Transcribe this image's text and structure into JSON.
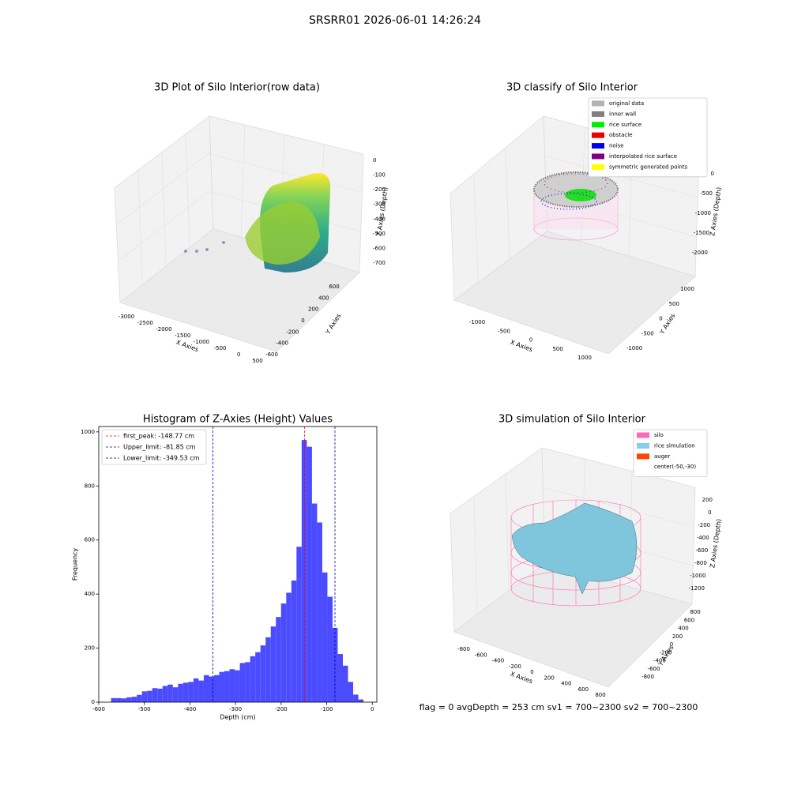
{
  "title": "SRSRR01 2026-06-01 14:26:24",
  "footer": "flag = 0     avgDepth = 253 cm  sv1 = 700~2300  sv2 = 700~2300",
  "chart_data": [
    {
      "type": "scatter3d",
      "title": "3D Plot of Silo Interior(row data)",
      "xlabel": "X Axies",
      "ylabel": "Y Axies",
      "zlabel": "Z Axies (Depth)",
      "xticks": [
        -3000,
        -2500,
        -2000,
        -1500,
        -1000,
        -500,
        0,
        500
      ],
      "yticks": [
        -600,
        -400,
        -200,
        0,
        200,
        400,
        600
      ],
      "zticks": [
        0,
        -100,
        -200,
        -300,
        -400,
        -500,
        -600,
        -700
      ]
    },
    {
      "type": "classify3d",
      "title": "3D classify of Silo Interior",
      "xlabel": "X Axies",
      "ylabel": "Y Axies",
      "zlabel": "Z Axies (Depth)",
      "xticks": [
        -1000,
        -500,
        0,
        500,
        1000
      ],
      "yticks": [
        -1000,
        -500,
        0,
        500,
        1000
      ],
      "zticks": [
        0,
        -500,
        -1000,
        -1500,
        -2000
      ],
      "legend": [
        {
          "name": "original data",
          "color": "#b3b3b3"
        },
        {
          "name": "inner wall",
          "color": "#808080"
        },
        {
          "name": "rice surface",
          "color": "#00ee00"
        },
        {
          "name": "obstacle",
          "color": "#ee0000"
        },
        {
          "name": "noise",
          "color": "#0000ee"
        },
        {
          "name": "interpolated rice surface",
          "color": "#800080"
        },
        {
          "name": "symmetric generated points",
          "color": "#ffff00"
        }
      ]
    },
    {
      "type": "histogram",
      "title": "Histogram of Z-Axies (Height) Values",
      "xlabel": "Depth (cm)",
      "ylabel": "Frequency",
      "color": "#4b4bff",
      "bins": [
        -573,
        -561.7,
        -550.4,
        -539.1,
        -527.8,
        -516.5,
        -505.2,
        -493.9,
        -482.6,
        -471.3,
        -460,
        -448.7,
        -437.4,
        -426.1,
        -414.8,
        -403.5,
        -392.2,
        -380.9,
        -369.6,
        -358.3,
        -347,
        -335.7,
        -324.4,
        -313.1,
        -301.8,
        -290.5,
        -279.2,
        -267.9,
        -256.6,
        -245.3,
        -234,
        -222.7,
        -211.4,
        -200.1,
        -188.8,
        -177.5,
        -166.2,
        -154.9,
        -143.6,
        -132.3,
        -121,
        -109.7,
        -98.4,
        -87.1,
        -75.8,
        -64.5,
        -53.2,
        -41.9,
        -30.6,
        -19.3
      ],
      "values": [
        15,
        15,
        14,
        18,
        20,
        27,
        40,
        42,
        52,
        50,
        60,
        65,
        55,
        68,
        72,
        75,
        88,
        80,
        100,
        95,
        100,
        112,
        115,
        122,
        118,
        145,
        148,
        170,
        185,
        210,
        240,
        280,
        315,
        365,
        405,
        450,
        575,
        970,
        945,
        735,
        665,
        480,
        390,
        275,
        178,
        135,
        75,
        28,
        10
      ],
      "xlim": [
        -600,
        10
      ],
      "ylim": [
        0,
        1020
      ],
      "xticks": [
        -600,
        -500,
        -400,
        -300,
        -200,
        -100,
        0
      ],
      "yticks": [
        0,
        200,
        400,
        600,
        800,
        1000
      ],
      "lines": [
        {
          "label": "first_peak: -148.77 cm",
          "value": -148.77,
          "color": "#ff0000"
        },
        {
          "label": "Upper_limit: -81.85 cm",
          "value": -81.85,
          "color": "#0000aa"
        },
        {
          "label": "Lower_limit: -349.53 cm",
          "value": -349.53,
          "color": "#0000aa"
        }
      ]
    },
    {
      "type": "surface3d",
      "title": "3D simulation of Silo Interior",
      "xlabel": "X Axies",
      "ylabel": "Y Axies",
      "zlabel": "Z Axies (Depth)",
      "xticks": [
        -800,
        -600,
        -400,
        -200,
        0,
        200,
        400,
        600,
        800
      ],
      "yticks": [
        -800,
        -600,
        -400,
        -200,
        0,
        200,
        400,
        600,
        800
      ],
      "zticks": [
        200,
        0,
        -200,
        -400,
        -600,
        -800,
        -1000,
        -1200
      ],
      "legend": [
        {
          "name": "silo",
          "color": "#ff69b4"
        },
        {
          "name": "rice simulation",
          "color": "#87ceeb"
        },
        {
          "name": "auger",
          "color": "#ff4500"
        },
        {
          "name": "center(-50,-30)",
          "color": "none"
        }
      ]
    }
  ]
}
